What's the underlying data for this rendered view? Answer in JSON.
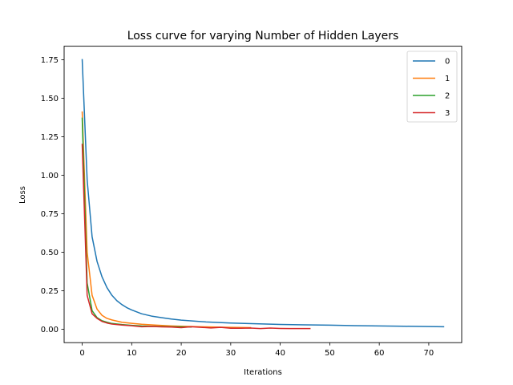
{
  "chart_data": {
    "type": "line",
    "title": "Loss curve for varying Number of Hidden Layers",
    "xlabel": "Iterations",
    "ylabel": "Loss",
    "xlim": [
      -3.65,
      76.65
    ],
    "ylim": [
      -0.0875,
      1.8375
    ],
    "xticks": [
      0,
      10,
      20,
      30,
      40,
      50,
      60,
      70
    ],
    "yticks": [
      0.0,
      0.25,
      0.5,
      0.75,
      1.0,
      1.25,
      1.5,
      1.75
    ],
    "ytick_labels": [
      "0.00",
      "0.25",
      "0.50",
      "0.75",
      "1.00",
      "1.25",
      "1.50",
      "1.75"
    ],
    "grid": false,
    "legend_position": "top-right",
    "series": [
      {
        "name": "0",
        "color": "#1f77b4",
        "x": [
          0,
          1,
          2,
          3,
          4,
          5,
          6,
          7,
          8,
          9,
          10,
          12,
          14,
          16,
          18,
          20,
          25,
          30,
          35,
          40,
          45,
          50,
          55,
          60,
          65,
          70,
          73
        ],
        "y": [
          1.75,
          0.97,
          0.6,
          0.44,
          0.34,
          0.27,
          0.22,
          0.185,
          0.16,
          0.14,
          0.125,
          0.1,
          0.085,
          0.075,
          0.066,
          0.059,
          0.047,
          0.04,
          0.035,
          0.031,
          0.028,
          0.026,
          0.023,
          0.021,
          0.019,
          0.017,
          0.016
        ]
      },
      {
        "name": "1",
        "color": "#ff7f0e",
        "x": [
          0,
          1,
          2,
          3,
          4,
          5,
          6,
          8,
          10,
          12,
          15,
          18,
          20,
          25,
          30,
          34
        ],
        "y": [
          1.41,
          0.5,
          0.22,
          0.13,
          0.09,
          0.07,
          0.06,
          0.045,
          0.038,
          0.032,
          0.026,
          0.021,
          0.019,
          0.015,
          0.012,
          0.01
        ]
      },
      {
        "name": "2",
        "color": "#2ca02c",
        "x": [
          0,
          1,
          2,
          3,
          4,
          5,
          6,
          8,
          10,
          12,
          14,
          16,
          18,
          20,
          22
        ],
        "y": [
          1.37,
          0.3,
          0.12,
          0.075,
          0.055,
          0.045,
          0.037,
          0.03,
          0.025,
          0.021,
          0.019,
          0.017,
          0.016,
          0.015,
          0.014
        ]
      },
      {
        "name": "3",
        "color": "#d62728",
        "x": [
          0,
          1,
          2,
          3,
          4,
          5,
          6,
          8,
          10,
          12,
          14,
          16,
          18,
          20,
          22,
          24,
          26,
          28,
          30,
          32,
          34,
          36,
          38,
          40,
          42,
          44,
          46
        ],
        "y": [
          1.2,
          0.22,
          0.1,
          0.07,
          0.05,
          0.04,
          0.033,
          0.027,
          0.022,
          0.016,
          0.018,
          0.015,
          0.014,
          0.01,
          0.016,
          0.012,
          0.008,
          0.012,
          0.006,
          0.006,
          0.007,
          0.004,
          0.007,
          0.005,
          0.004,
          0.004,
          0.004
        ]
      }
    ]
  }
}
